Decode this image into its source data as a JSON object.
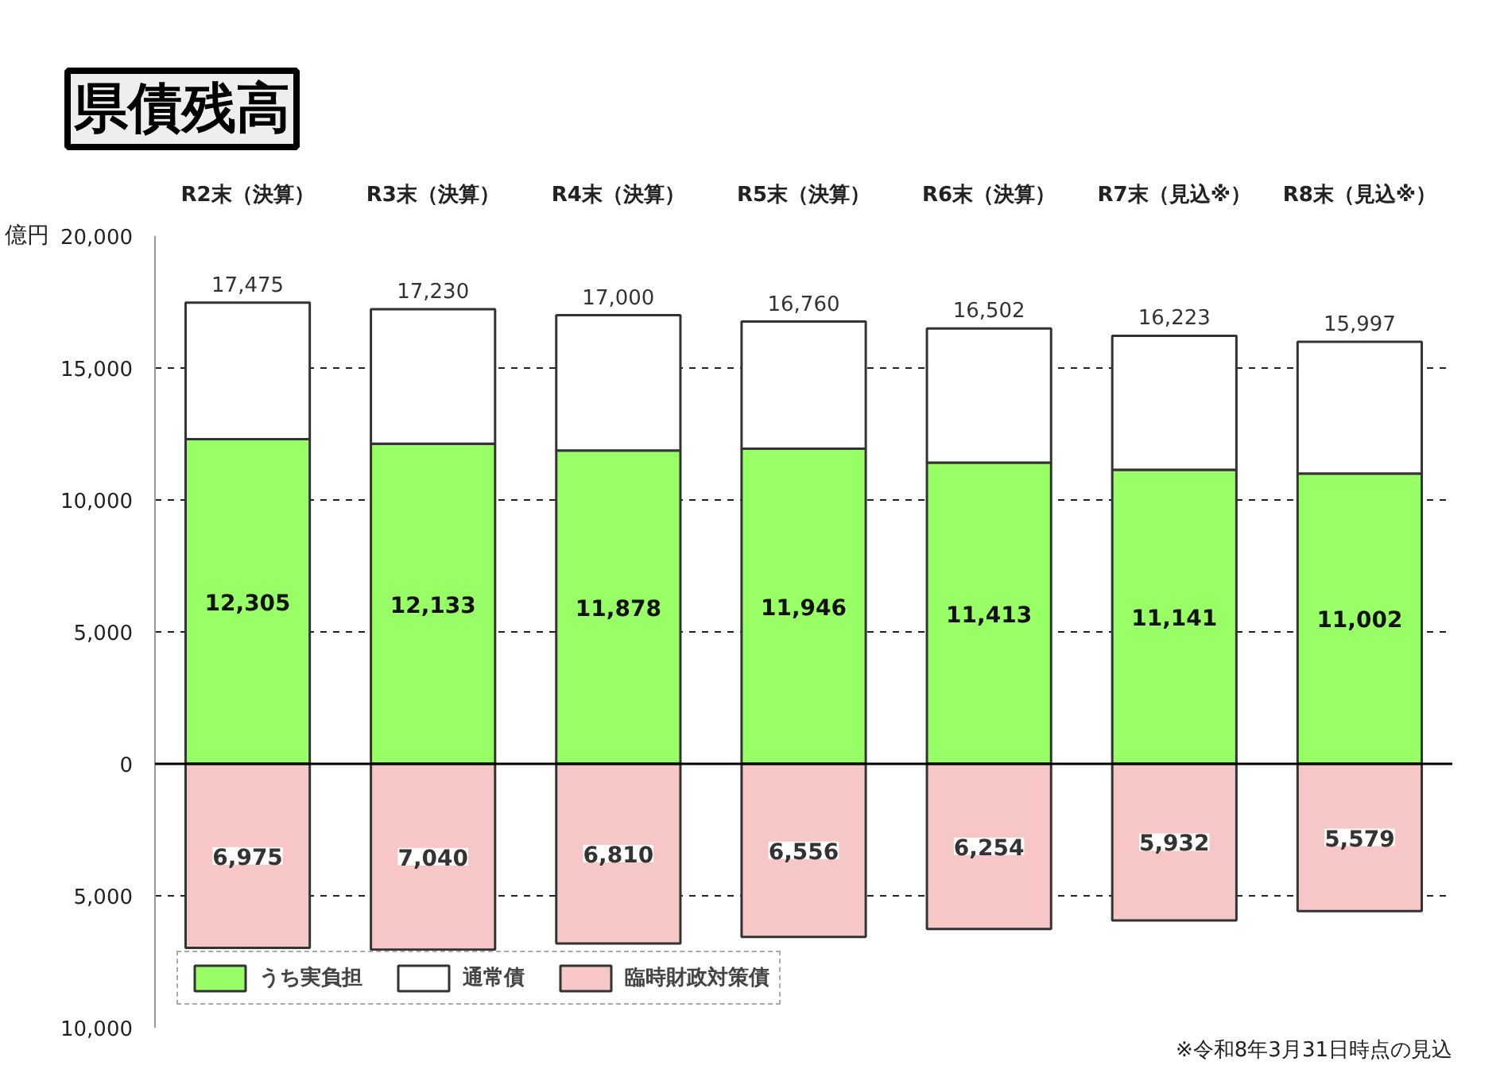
{
  "chart_data": {
    "type": "bar",
    "title": "県債残高",
    "y2label": "億円",
    "stacked": true,
    "categories": [
      "R2末（決算）",
      "R3末（決算）",
      "R4末（決算）",
      "R5末（決算）",
      "R6末（決算）",
      "R7末（見込※）",
      "R8末（見込※）"
    ],
    "series": [
      {
        "name": "うち実負担",
        "color": "#99ff66",
        "values": [
          12305,
          12133,
          11878,
          11946,
          11413,
          11141,
          11002
        ],
        "value_labels": [
          "12,305",
          "12,133",
          "11,878",
          "11,946",
          "11,413",
          "11,141",
          "11,002"
        ]
      },
      {
        "name": "通常債",
        "color": "#ffffff",
        "values": [
          5170,
          5097,
          5122,
          4814,
          5089,
          5082,
          4995
        ]
      },
      {
        "name": "臨時財政対策債",
        "color": "#f7c6c6",
        "axis": "y2",
        "values": [
          6975,
          7040,
          6810,
          6556,
          6254,
          5932,
          5579
        ],
        "value_labels": [
          "6,975",
          "7,040",
          "6,810",
          "6,556",
          "6,254",
          "5,932",
          "5,579"
        ]
      }
    ],
    "totals": [
      "17,475",
      "17,230",
      "17,000",
      "16,760",
      "16,502",
      "16,223",
      "15,997"
    ],
    "ylim": [
      -10000,
      20000
    ],
    "yticks": [
      0,
      {
        "value": 5000,
        "label": "5,000"
      },
      {
        "value": 10000,
        "label": "10,000"
      },
      {
        "value": 15000,
        "label": "15,000"
      },
      {
        "value": 20000,
        "label": "20,000"
      }
    ],
    "y2lim": [
      10000,
      -20000
    ],
    "y2ticks": [
      {
        "value": 5000,
        "label": "5,000"
      },
      {
        "value": 10000,
        "label": "10,000"
      }
    ],
    "grid": "y",
    "legend": "bottom left",
    "ref_lines": [
      {
        "axis": "y",
        "value": 0,
        "color": "#000000",
        "line_style": "solid"
      }
    ],
    "annotations": [
      "※令和8年3月31日時点の見込"
    ]
  }
}
